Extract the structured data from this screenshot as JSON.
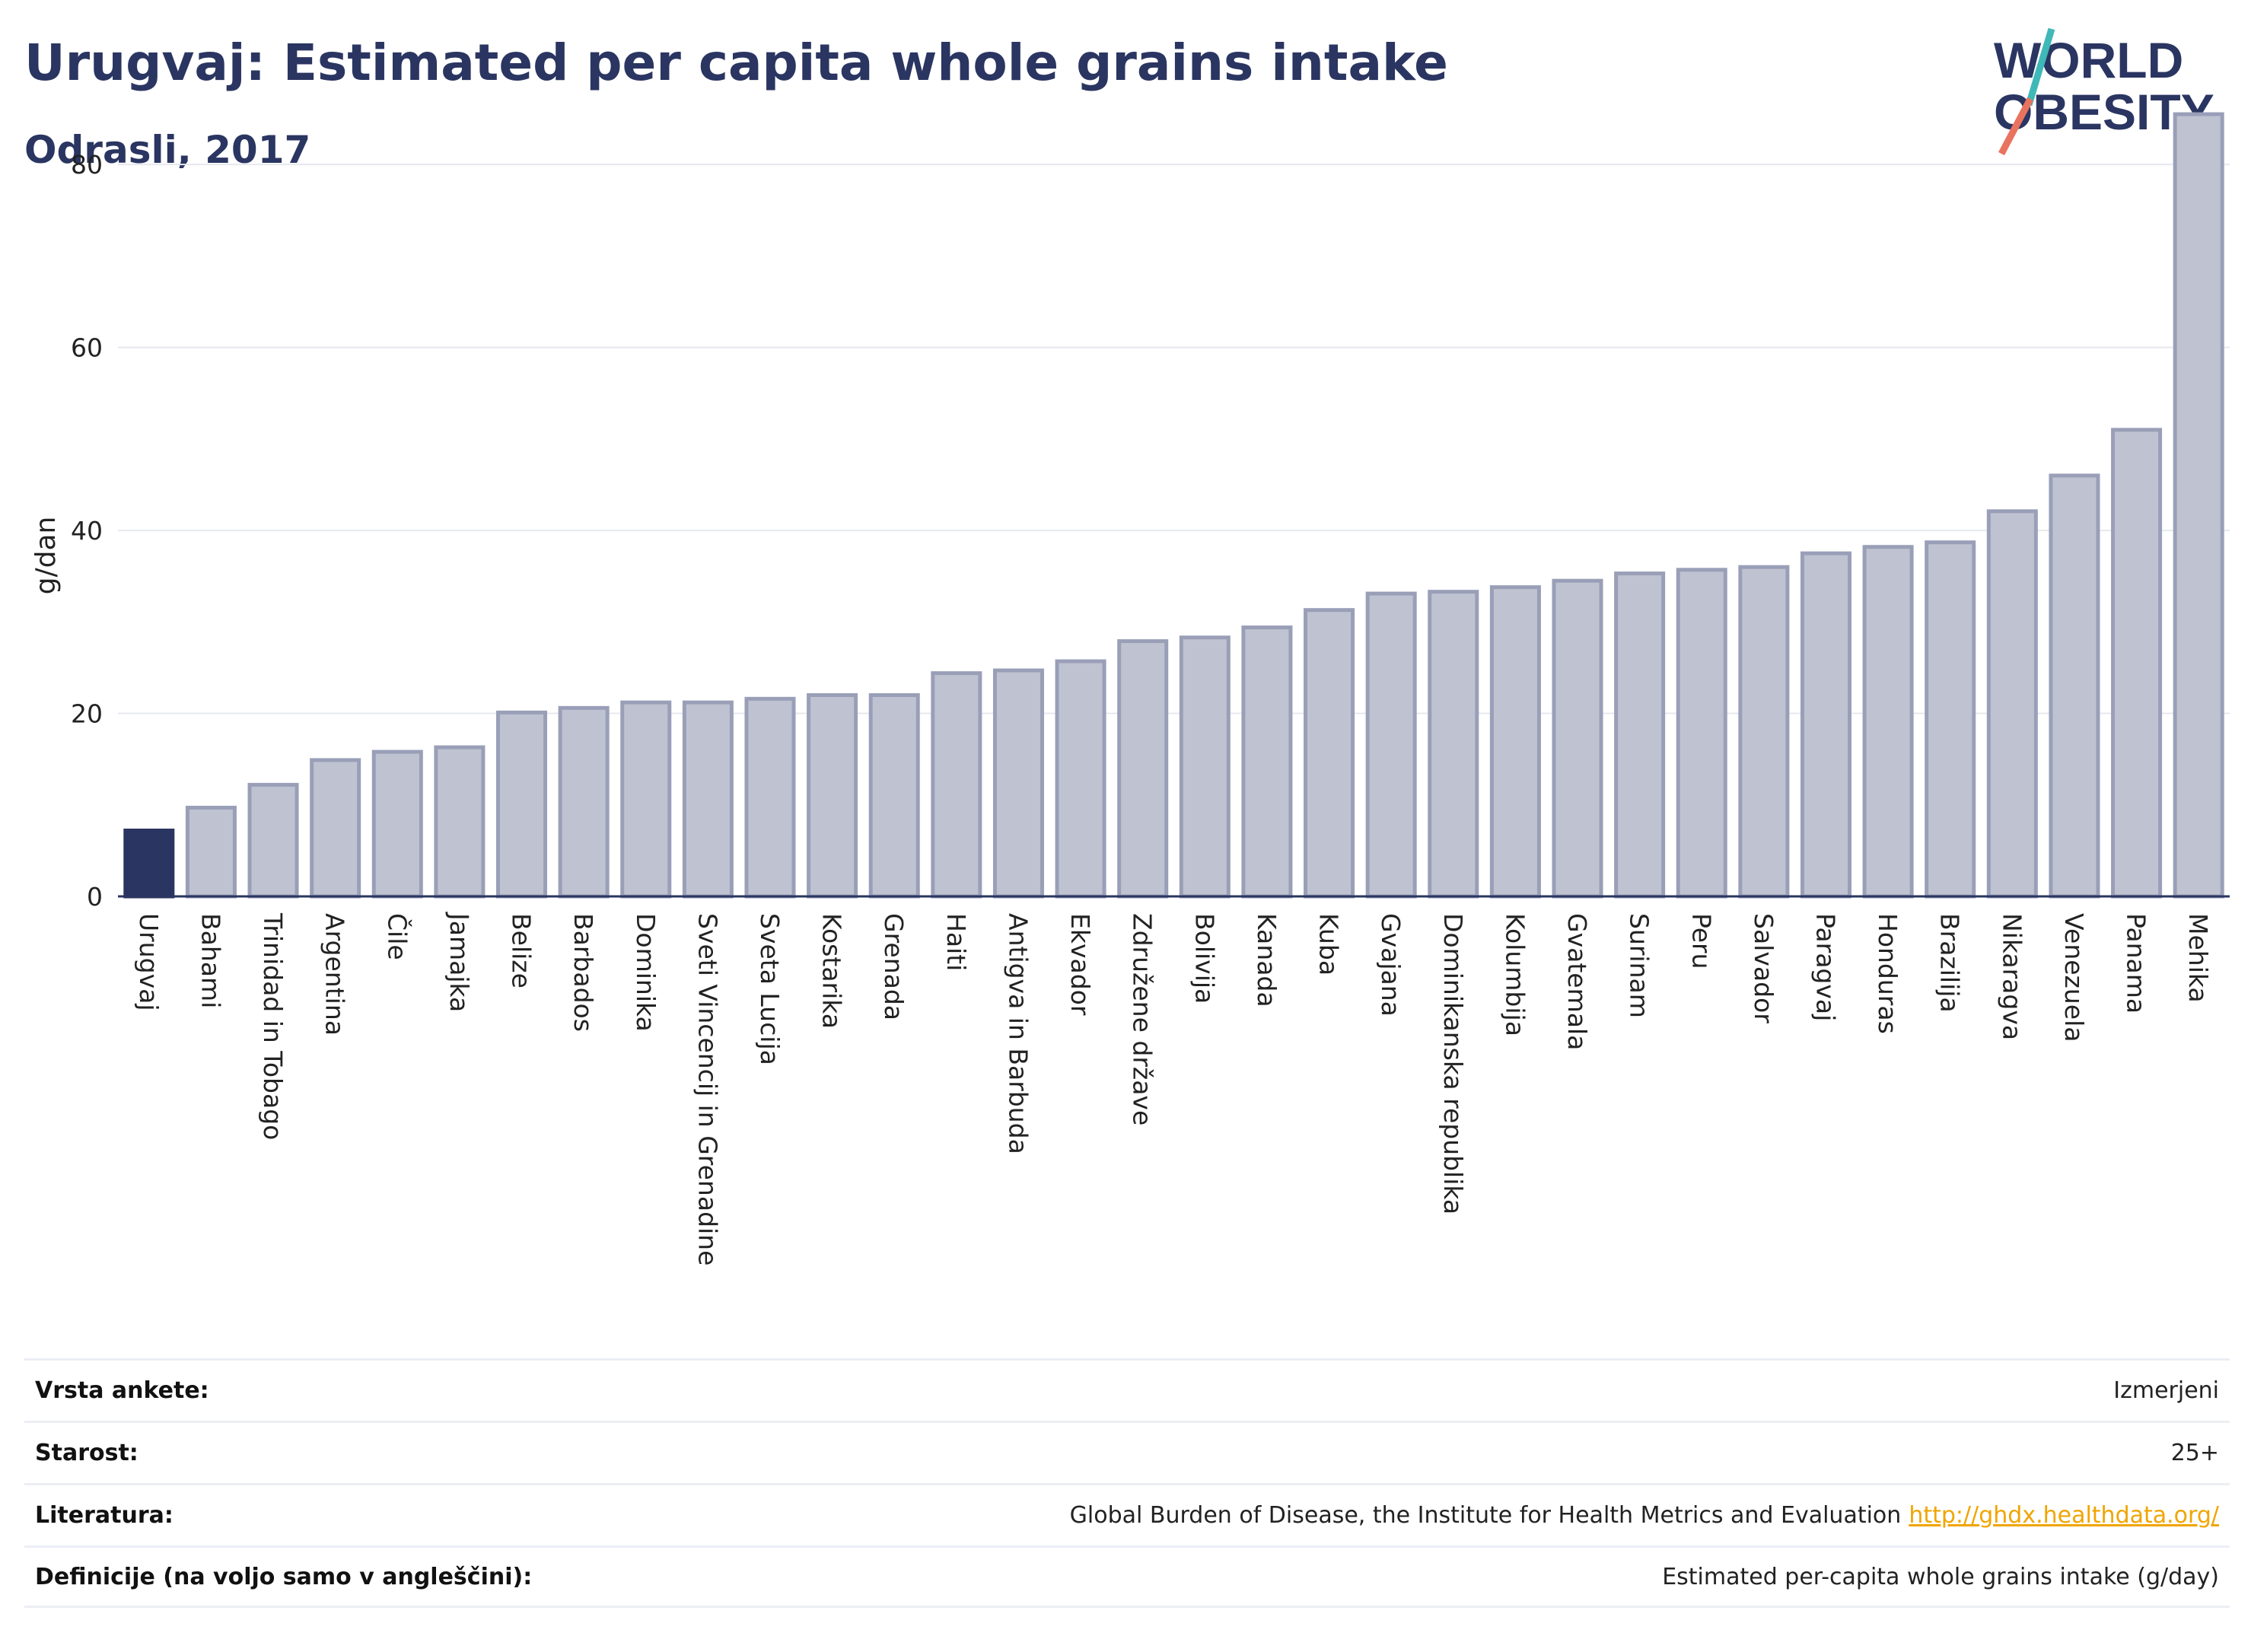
{
  "header": {
    "title": "Urugvaj: Estimated per capita whole grains intake",
    "subtitle": "Odrasli, 2017",
    "logo_line1": "WORLD",
    "logo_line2": "OBESITY"
  },
  "colors": {
    "title": "#2a3561",
    "highlight_bar": "#2a3561",
    "bar_fill": "#bfc3d1",
    "bar_stroke": "#9a9fb8",
    "logo_teal": "#3fb8b8",
    "logo_coral": "#e8735f",
    "link": "#f0a500"
  },
  "chart_data": {
    "type": "bar",
    "ylabel": "g/dan",
    "ylim": [
      0,
      88
    ],
    "yticks": [
      0,
      20,
      40,
      60,
      80
    ],
    "grid": true,
    "highlight": "Urugvaj",
    "categories": [
      "Urugvaj",
      "Bahami",
      "Trinidad in Tobago",
      "Argentina",
      "Čile",
      "Jamajka",
      "Belize",
      "Barbados",
      "Dominika",
      "Sveti Vincencij in Grenadine",
      "Sveta Lucija",
      "Kostarika",
      "Grenada",
      "Haiti",
      "Antigva in Barbuda",
      "Ekvador",
      "Združene države",
      "Bolivija",
      "Kanada",
      "Kuba",
      "Gvajana",
      "Dominikanska republika",
      "Kolumbija",
      "Gvatemala",
      "Surinam",
      "Peru",
      "Salvador",
      "Paragvaj",
      "Honduras",
      "Brazilija",
      "Nikaragva",
      "Venezuela",
      "Panama",
      "Mehika"
    ],
    "values": [
      7.2,
      9.7,
      12.2,
      14.9,
      15.8,
      16.3,
      20.1,
      20.6,
      21.2,
      21.2,
      21.6,
      22.0,
      22.0,
      24.4,
      24.7,
      25.7,
      27.9,
      28.3,
      29.4,
      31.3,
      33.1,
      33.3,
      33.8,
      34.5,
      35.3,
      35.7,
      36.0,
      37.5,
      38.2,
      38.7,
      42.1,
      46.0,
      51.0,
      85.5
    ]
  },
  "info": [
    {
      "key": "Vrsta ankete:",
      "value": "Izmerjeni"
    },
    {
      "key": "Starost:",
      "value": "25+"
    },
    {
      "key": "Literatura:",
      "value": "Global Burden of Disease, the Institute for Health Metrics and Evaluation",
      "link": "http://ghdx.healthdata.org/"
    },
    {
      "key": "Definicije (na voljo samo v angleščini):",
      "value": "Estimated per-capita whole grains intake (g/day)"
    }
  ]
}
